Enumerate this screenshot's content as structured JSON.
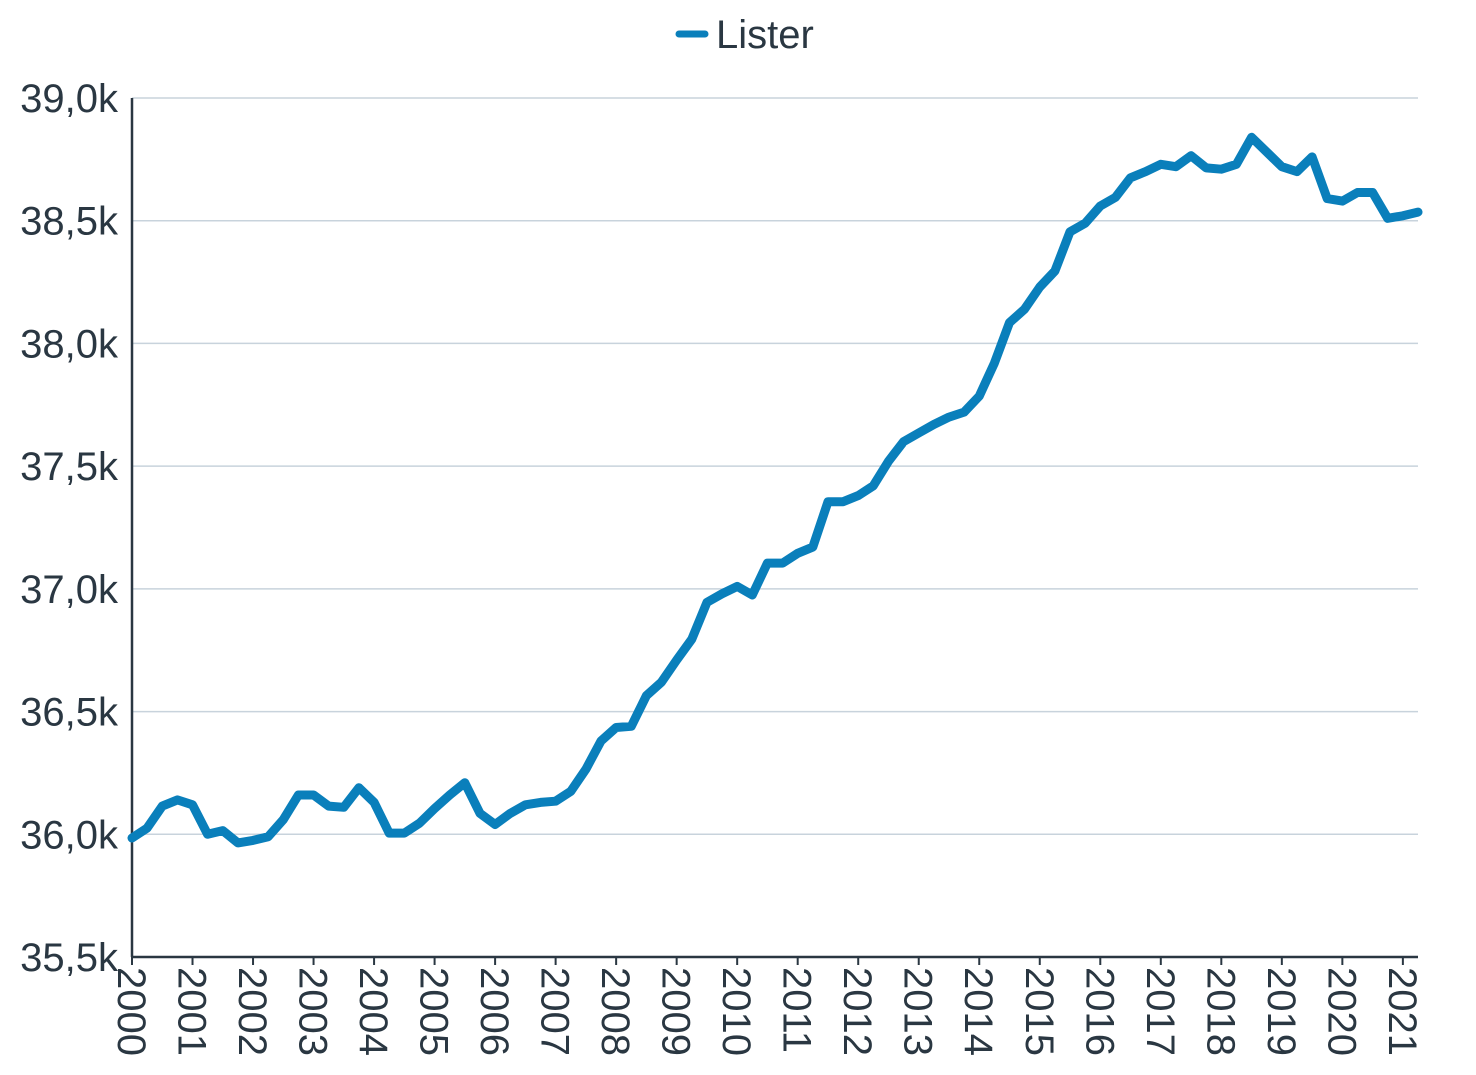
{
  "chart_data": {
    "type": "line",
    "title": "",
    "xlabel": "",
    "ylabel": "",
    "legend": {
      "position": "top-center"
    },
    "colors": {
      "series": "#0a7fbb",
      "grid": "#c8d3dc",
      "axis": "#2a3742",
      "text": "#2a3742"
    },
    "grid": true,
    "xlim": [
      "2000-01",
      "2021-04"
    ],
    "ylim": [
      35500,
      39000
    ],
    "x_ticks": [
      "2000",
      "2001",
      "2002",
      "2003",
      "2004",
      "2005",
      "2006",
      "2007",
      "2008",
      "2009",
      "2010",
      "2011",
      "2012",
      "2013",
      "2014",
      "2015",
      "2016",
      "2017",
      "2018",
      "2019",
      "2020",
      "2021"
    ],
    "y_ticks": [
      {
        "value": 35500,
        "label": "35,5k"
      },
      {
        "value": 36000,
        "label": "36,0k"
      },
      {
        "value": 36500,
        "label": "36,5k"
      },
      {
        "value": 37000,
        "label": "37,0k"
      },
      {
        "value": 37500,
        "label": "37,5k"
      },
      {
        "value": 38000,
        "label": "38,0k"
      },
      {
        "value": 38500,
        "label": "38,5k"
      },
      {
        "value": 39000,
        "label": "39,0k"
      }
    ],
    "series": [
      {
        "name": "Lister",
        "x": [
          "2000-01",
          "2000-04",
          "2000-07",
          "2000-10",
          "2001-01",
          "2001-04",
          "2001-07",
          "2001-10",
          "2002-01",
          "2002-04",
          "2002-07",
          "2002-10",
          "2003-01",
          "2003-04",
          "2003-07",
          "2003-10",
          "2004-01",
          "2004-04",
          "2004-07",
          "2004-10",
          "2005-01",
          "2005-04",
          "2005-07",
          "2005-10",
          "2006-01",
          "2006-04",
          "2006-07",
          "2006-10",
          "2007-01",
          "2007-04",
          "2007-07",
          "2007-10",
          "2008-01",
          "2008-04",
          "2008-07",
          "2008-10",
          "2009-01",
          "2009-04",
          "2009-07",
          "2009-10",
          "2010-01",
          "2010-04",
          "2010-07",
          "2010-10",
          "2011-01",
          "2011-04",
          "2011-07",
          "2011-10",
          "2012-01",
          "2012-04",
          "2012-07",
          "2012-10",
          "2013-01",
          "2013-04",
          "2013-07",
          "2013-10",
          "2014-01",
          "2014-04",
          "2014-07",
          "2014-10",
          "2015-01",
          "2015-04",
          "2015-07",
          "2015-10",
          "2016-01",
          "2016-04",
          "2016-07",
          "2016-10",
          "2017-01",
          "2017-04",
          "2017-07",
          "2017-10",
          "2018-01",
          "2018-04",
          "2018-07",
          "2018-10",
          "2019-01",
          "2019-04",
          "2019-07",
          "2019-10",
          "2020-01",
          "2020-04",
          "2020-07",
          "2020-10",
          "2021-01",
          "2021-04"
        ],
        "values": [
          35985,
          36025,
          36115,
          36140,
          36120,
          36000,
          36015,
          35965,
          35975,
          35990,
          36060,
          36160,
          36160,
          36115,
          36110,
          36190,
          36130,
          36005,
          36005,
          36045,
          36105,
          36160,
          36210,
          36085,
          36040,
          36085,
          36120,
          36130,
          36135,
          36175,
          36265,
          36380,
          36435,
          36440,
          36565,
          36620,
          36710,
          36795,
          36945,
          36980,
          37010,
          36975,
          37105,
          37105,
          37145,
          37170,
          37355,
          37355,
          37380,
          37420,
          37520,
          37600,
          37635,
          37670,
          37700,
          37720,
          37785,
          37920,
          38085,
          38140,
          38230,
          38295,
          38455,
          38490,
          38560,
          38595,
          38675,
          38700,
          38730,
          38720,
          38765,
          38715,
          38710,
          38730,
          38840,
          38780,
          38720,
          38700,
          38760,
          38590,
          38580,
          38615,
          38615,
          38510,
          38520,
          38535
        ]
      }
    ]
  }
}
